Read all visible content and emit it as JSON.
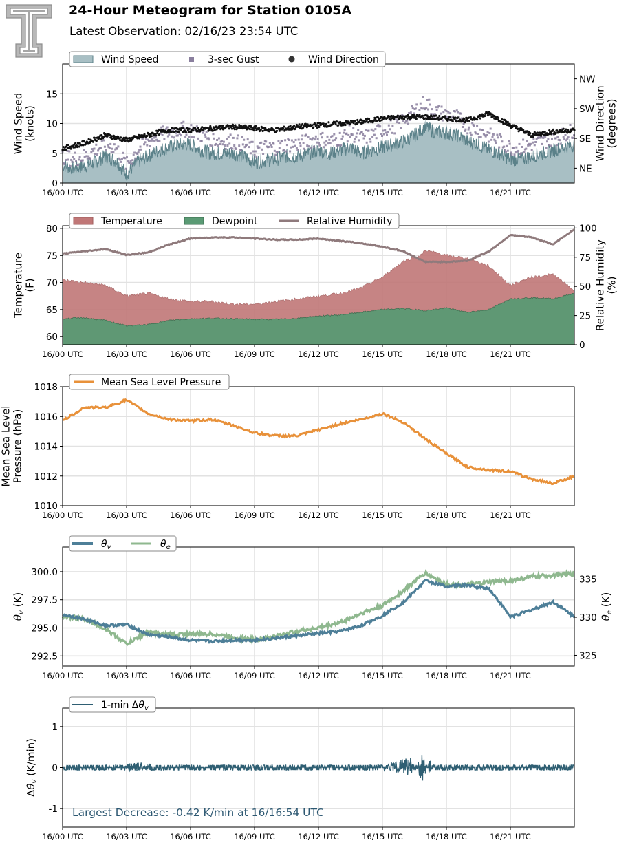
{
  "header": {
    "title": "24-Hour Meteogram for Station 0105A",
    "subtitle": "Latest Observation: 02/16/23 23:54 UTC",
    "logo": "texas-tech-double-t-logo",
    "logo_mark": "T"
  },
  "x_axis": {
    "ticks": [
      0,
      3,
      6,
      9,
      12,
      15,
      18,
      21
    ],
    "tick_labels": [
      "16/00 UTC",
      "16/03 UTC",
      "16/06 UTC",
      "16/09 UTC",
      "16/12 UTC",
      "16/15 UTC",
      "16/18 UTC",
      "16/21 UTC"
    ],
    "range_hours": [
      0,
      24
    ]
  },
  "colors": {
    "wind_fill": "#a8bfc4",
    "wind_line": "#5b8189",
    "gust": "#8a7f9e",
    "direction": "#111111",
    "temperature": "#c07777",
    "dewpoint": "#5a9a74",
    "rh": "#8f7a7c",
    "pressure": "#e8913a",
    "theta_v": "#4e7f98",
    "theta_e": "#8fb88f",
    "dtheta": "#2f5f73",
    "grid": "#e2e2e2"
  },
  "chart_data": [
    {
      "id": "wind",
      "type": "area",
      "ylabel": [
        "Wind Speed",
        "(knots)"
      ],
      "ylim": [
        0,
        20
      ],
      "yticks": [
        0,
        5,
        10,
        15
      ],
      "y2label": [
        "Wind Direction",
        "(degrees)"
      ],
      "y2ticks": [
        "NE",
        "SE",
        "SW",
        "NW"
      ],
      "y2_degrees": [
        45,
        135,
        225,
        315
      ],
      "y2lim": [
        0,
        360
      ],
      "legend": [
        "Wind Speed",
        "3-sec Gust",
        "Wind Direction"
      ],
      "series": [
        {
          "name": "Wind Speed",
          "x": [
            0,
            0.5,
            1,
            1.5,
            2,
            2.5,
            3,
            3.5,
            4,
            4.5,
            5,
            5.5,
            6,
            6.5,
            7,
            7.5,
            8,
            8.5,
            9,
            9.5,
            10,
            10.5,
            11,
            11.5,
            12,
            12.5,
            13,
            13.5,
            14,
            14.5,
            15,
            15.5,
            16,
            16.5,
            17,
            17.5,
            18,
            18.5,
            19,
            19.5,
            20,
            20.5,
            21,
            21.5,
            22,
            22.5,
            23,
            23.5,
            24
          ],
          "values": [
            3,
            2.5,
            2.8,
            3.5,
            4.5,
            3.8,
            1.5,
            3.5,
            4.5,
            5.5,
            6,
            6.5,
            6.5,
            5.5,
            5,
            5,
            5,
            4.5,
            3.5,
            3.8,
            4,
            4.5,
            4.5,
            5,
            5.5,
            5,
            5.5,
            6,
            5,
            5.5,
            6,
            6.5,
            7,
            8,
            9.5,
            8.5,
            8.5,
            8,
            7,
            6.5,
            5.5,
            5,
            4,
            4,
            4.5,
            5,
            5.5,
            6,
            6.5
          ]
        },
        {
          "name": "3-sec Gust",
          "x": [
            0,
            0.5,
            1,
            1.5,
            2,
            2.5,
            3,
            3.5,
            4,
            4.5,
            5,
            5.5,
            6,
            6.5,
            7,
            7.5,
            8,
            8.5,
            9,
            9.5,
            10,
            10.5,
            11,
            11.5,
            12,
            12.5,
            13,
            13.5,
            14,
            14.5,
            15,
            15.5,
            16,
            16.5,
            17,
            17.5,
            18,
            18.5,
            19,
            19.5,
            20,
            20.5,
            21,
            21.5,
            22,
            22.5,
            23,
            23.5,
            24
          ],
          "values": [
            4.5,
            4,
            4.5,
            5.5,
            6.5,
            6,
            3,
            5.5,
            7,
            8,
            8.5,
            9,
            9,
            8,
            7.5,
            7,
            7,
            6.5,
            5.5,
            6,
            6,
            6.5,
            6.5,
            7,
            7.5,
            7,
            7.5,
            8.5,
            7.5,
            8,
            9,
            9.5,
            10.5,
            12,
            13.5,
            12,
            11.5,
            11,
            9.5,
            9,
            8,
            7,
            6,
            6,
            6.5,
            7,
            7.5,
            8,
            9
          ]
        },
        {
          "name": "Wind Direction",
          "x": [
            0,
            1,
            2,
            3,
            4,
            5,
            6,
            7,
            8,
            9,
            10,
            11,
            12,
            13,
            14,
            15,
            16,
            17,
            18,
            19,
            20,
            21,
            22,
            23,
            24
          ],
          "values": [
            105,
            120,
            145,
            130,
            145,
            160,
            160,
            165,
            170,
            165,
            160,
            170,
            175,
            180,
            185,
            195,
            200,
            200,
            195,
            190,
            210,
            175,
            145,
            155,
            160
          ]
        }
      ]
    },
    {
      "id": "temp",
      "type": "area",
      "ylabel": [
        "Temperature",
        "(F)"
      ],
      "ylim": [
        58.5,
        80.5
      ],
      "yticks": [
        60,
        65,
        70,
        75,
        80
      ],
      "y2label": [
        "Relative Humidity",
        "(%)"
      ],
      "y2lim": [
        0,
        102
      ],
      "y2ticks": [
        0,
        25,
        50,
        75,
        100
      ],
      "legend": [
        "Temperature",
        "Dewpoint",
        "Relative Humidity"
      ],
      "series": [
        {
          "name": "Temperature",
          "x": [
            0,
            1,
            2,
            3,
            4,
            5,
            6,
            7,
            8,
            9,
            10,
            11,
            12,
            13,
            14,
            15,
            16,
            16.8,
            17,
            18,
            19,
            20,
            21,
            22,
            23,
            24
          ],
          "values": [
            70.5,
            70,
            69.5,
            67.5,
            68,
            67,
            66.5,
            66.5,
            66,
            66,
            66.5,
            67,
            67.5,
            68,
            69,
            71,
            74,
            75,
            76,
            75,
            74.5,
            73,
            69.5,
            71,
            71.5,
            68.5
          ]
        },
        {
          "name": "Dewpoint",
          "x": [
            0,
            1,
            2,
            3,
            4,
            5,
            6,
            7,
            8,
            9,
            10,
            11,
            12,
            13,
            14,
            15,
            16,
            17,
            18,
            19,
            20,
            21,
            22,
            23,
            24
          ],
          "values": [
            63.3,
            63.5,
            63,
            62,
            62.2,
            63,
            63.3,
            63.4,
            63.3,
            63.2,
            63.2,
            63.4,
            63.8,
            64,
            64.5,
            65,
            65.2,
            64.8,
            65.3,
            64.5,
            65,
            67,
            67.2,
            67,
            68
          ]
        },
        {
          "name": "Relative Humidity",
          "x": [
            0,
            1,
            2,
            3,
            4,
            5,
            6,
            7,
            8,
            9,
            10,
            11,
            12,
            13,
            14,
            15,
            16,
            17,
            18,
            19,
            20,
            21,
            22,
            23,
            24
          ],
          "values": [
            78,
            80,
            82,
            77,
            79,
            86,
            91,
            92,
            92,
            91,
            90,
            90,
            91,
            89,
            87,
            84,
            80,
            71,
            71,
            72,
            80,
            94,
            92,
            86,
            99
          ]
        }
      ]
    },
    {
      "id": "pressure",
      "type": "line",
      "ylabel": [
        "Mean Sea Level",
        "Pressure (hPa)"
      ],
      "ylim": [
        1010,
        1018
      ],
      "yticks": [
        1010,
        1012,
        1014,
        1016,
        1018
      ],
      "legend": [
        "Mean Sea Level Pressure"
      ],
      "series": [
        {
          "name": "Mean Sea Level Pressure",
          "x": [
            0,
            1,
            2,
            3,
            4,
            5,
            6,
            7,
            8,
            9,
            10,
            11,
            12,
            13,
            14,
            15,
            16,
            17,
            18,
            19,
            20,
            21,
            22,
            23,
            24
          ],
          "values": [
            1015.7,
            1016.6,
            1016.6,
            1017.1,
            1016.2,
            1015.8,
            1015.7,
            1015.8,
            1015.4,
            1014.9,
            1014.7,
            1014.7,
            1015.1,
            1015.5,
            1015.8,
            1016.2,
            1015.6,
            1014.5,
            1013.5,
            1012.6,
            1012.4,
            1012.3,
            1011.8,
            1011.5,
            1012
          ]
        }
      ]
    },
    {
      "id": "theta",
      "type": "line",
      "ylabel": [
        "θv (K)"
      ],
      "ylim": [
        291.6,
        302.2
      ],
      "yticks": [
        292.5,
        295.0,
        297.5,
        300.0
      ],
      "ytick_labels": [
        "292.5",
        "295.0",
        "297.5",
        "300.0"
      ],
      "y2label": [
        "θe (K)"
      ],
      "y2lim": [
        323.6,
        339.2
      ],
      "y2ticks": [
        325,
        330,
        335
      ],
      "legend": [
        "θv",
        "θe"
      ],
      "series": [
        {
          "name": "θv",
          "x": [
            0,
            1,
            2,
            3,
            4,
            5,
            6,
            7,
            8,
            9,
            10,
            11,
            12,
            13,
            14,
            15,
            16,
            17,
            18,
            19,
            20,
            21,
            22,
            23,
            24
          ],
          "values": [
            296.2,
            295.8,
            295.2,
            295.3,
            294.4,
            294.2,
            293.9,
            293.8,
            293.9,
            293.9,
            294.1,
            294.3,
            294.5,
            294.7,
            295.2,
            296.1,
            297.3,
            299.2,
            298.7,
            298.8,
            298.5,
            296,
            296.6,
            297.3,
            296
          ]
        },
        {
          "name": "θe",
          "x": [
            0,
            1,
            2,
            3,
            4,
            5,
            6,
            7,
            8,
            9,
            10,
            11,
            12,
            13,
            14,
            15,
            16,
            17,
            18,
            19,
            20,
            21,
            22,
            23,
            24
          ],
          "values": [
            330,
            329.8,
            328.5,
            326.5,
            328,
            327.7,
            327.8,
            327.8,
            327.4,
            327,
            327.5,
            328.2,
            328.6,
            329.3,
            330.5,
            331.5,
            333.5,
            335.8,
            334.3,
            334.2,
            334.6,
            334.8,
            335.3,
            335.5,
            335.7
          ]
        }
      ]
    },
    {
      "id": "dtheta",
      "type": "line",
      "ylabel": [
        "Δθv (K/min)"
      ],
      "ylim": [
        -1.45,
        1.45
      ],
      "yticks": [
        -1,
        0,
        1
      ],
      "legend": [
        "1-min Δθv"
      ],
      "annotation": "Largest Decrease: -0.42 K/min at 16/16:54 UTC",
      "series": [
        {
          "name": "1-min Δθv",
          "x": [
            0,
            2,
            3.6,
            5,
            7,
            9,
            11,
            13,
            15,
            16.3,
            16.9,
            17.2,
            17.8,
            18.5,
            19,
            21,
            23,
            24
          ],
          "values": [
            0,
            0.05,
            0.12,
            0.05,
            0.05,
            0.05,
            0.05,
            0.05,
            0.08,
            0.25,
            -0.42,
            0.2,
            -0.12,
            0.1,
            0.06,
            0,
            0.05,
            0
          ]
        }
      ]
    }
  ]
}
